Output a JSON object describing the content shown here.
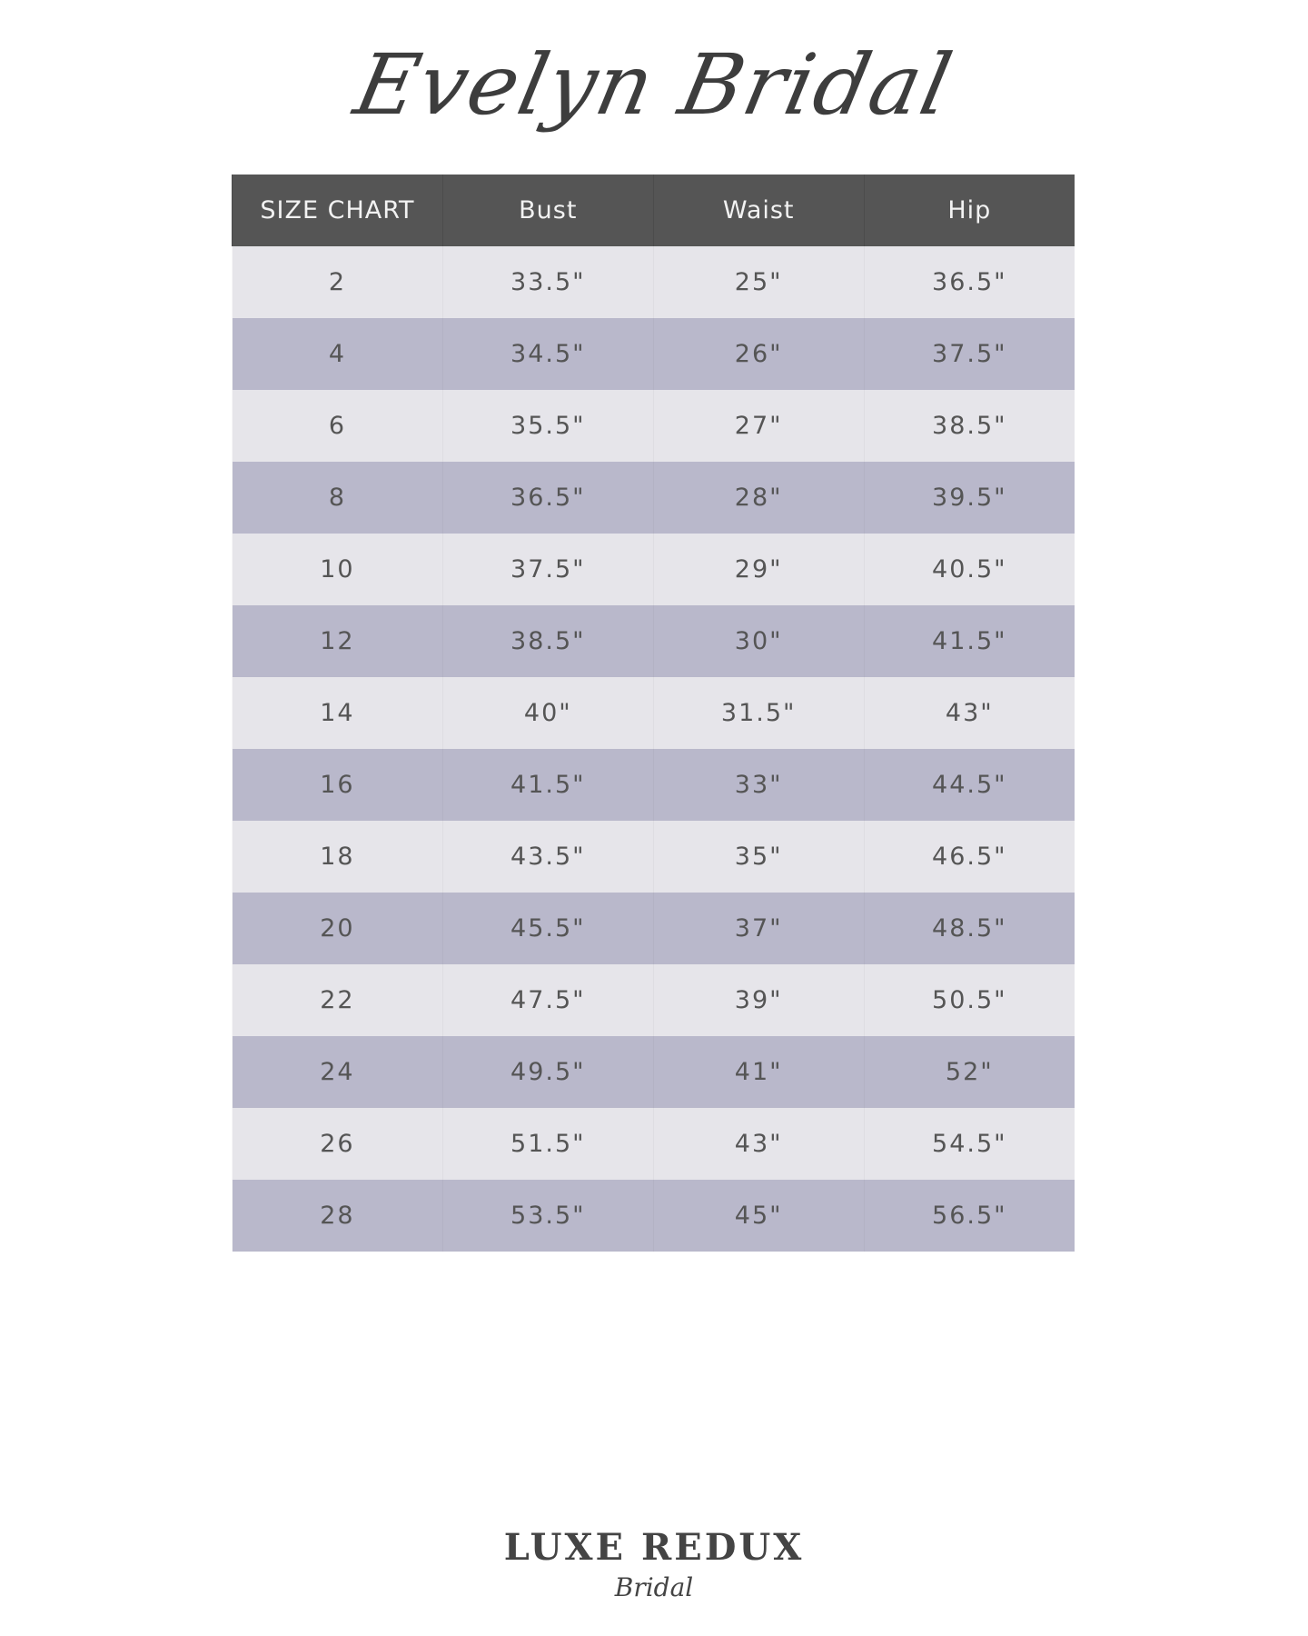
{
  "brand_title": "Evelyn Bridal",
  "table": {
    "headers": [
      "SIZE CHART",
      "Bust",
      "Waist",
      "Hip"
    ],
    "rows": [
      [
        "2",
        "33.5\"",
        "25\"",
        "36.5\""
      ],
      [
        "4",
        "34.5\"",
        "26\"",
        "37.5\""
      ],
      [
        "6",
        "35.5\"",
        "27\"",
        "38.5\""
      ],
      [
        "8",
        "36.5\"",
        "28\"",
        "39.5\""
      ],
      [
        "10",
        "37.5\"",
        "29\"",
        "40.5\""
      ],
      [
        "12",
        "38.5\"",
        "30\"",
        "41.5\""
      ],
      [
        "14",
        "40\"",
        "31.5\"",
        "43\""
      ],
      [
        "16",
        "41.5\"",
        "33\"",
        "44.5\""
      ],
      [
        "18",
        "43.5\"",
        "35\"",
        "46.5\""
      ],
      [
        "20",
        "45.5\"",
        "37\"",
        "48.5\""
      ],
      [
        "22",
        "47.5\"",
        "39\"",
        "50.5\""
      ],
      [
        "24",
        "49.5\"",
        "41\"",
        "52\""
      ],
      [
        "26",
        "51.5\"",
        "43\"",
        "54.5\""
      ],
      [
        "28",
        "53.5\"",
        "45\"",
        "56.5\""
      ]
    ]
  },
  "logo": {
    "main": "LUXE REDUX",
    "sub": "Bridal"
  },
  "colors": {
    "header": "#555555",
    "row_light": "#e6e5ea",
    "row_dark": "#b9b8cb",
    "text": "#555555"
  }
}
